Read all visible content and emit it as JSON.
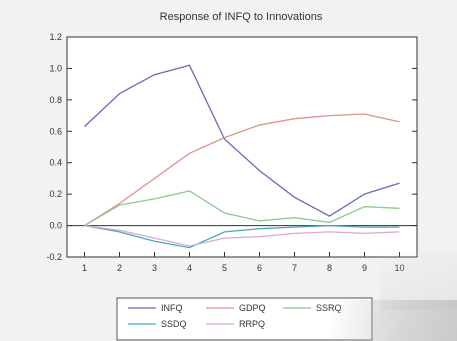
{
  "chart_data": {
    "type": "line",
    "title": "Response of INFQ to Innovations",
    "x": [
      1,
      2,
      3,
      4,
      5,
      6,
      7,
      8,
      9,
      10
    ],
    "xticklabels": [
      "1",
      "2",
      "3",
      "4",
      "5",
      "6",
      "7",
      "8",
      "9",
      "10"
    ],
    "ylim": [
      -0.2,
      1.2
    ],
    "yticks": [
      -0.2,
      0.0,
      0.2,
      0.4,
      0.6,
      0.8,
      1.0,
      1.2
    ],
    "yticklabels": [
      "-0.2",
      "0.0",
      "0.2",
      "0.4",
      "0.6",
      "0.8",
      "1.0",
      "1.2"
    ],
    "zero_line": true,
    "legend_position": "bottom",
    "series": [
      {
        "name": "INFQ",
        "color": "#6a6ab8",
        "values": [
          0.63,
          0.84,
          0.96,
          1.02,
          0.55,
          0.35,
          0.18,
          0.06,
          0.2,
          0.27
        ]
      },
      {
        "name": "GDPQ",
        "color": "#e0908a",
        "values": [
          0.0,
          0.14,
          0.3,
          0.46,
          0.56,
          0.64,
          0.68,
          0.7,
          0.71,
          0.66
        ]
      },
      {
        "name": "SSRQ",
        "color": "#90c890",
        "values": [
          0.0,
          0.13,
          0.17,
          0.22,
          0.08,
          0.03,
          0.05,
          0.02,
          0.12,
          0.11
        ]
      },
      {
        "name": "SSDQ",
        "color": "#4aa8b8",
        "values": [
          0.0,
          -0.04,
          -0.1,
          -0.14,
          -0.04,
          -0.02,
          -0.01,
          0.0,
          -0.01,
          -0.01
        ]
      },
      {
        "name": "RRPQ",
        "color": "#d8a8d8",
        "values": [
          0.0,
          -0.03,
          -0.08,
          -0.13,
          -0.08,
          -0.07,
          -0.05,
          -0.04,
          -0.05,
          -0.04
        ]
      }
    ]
  }
}
